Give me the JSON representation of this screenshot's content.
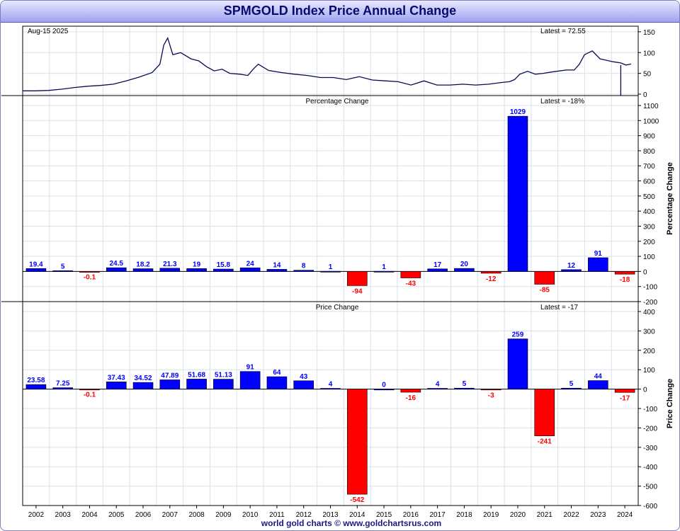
{
  "title": "SPMGOLD Index Price Annual Change",
  "footer": "world gold charts © www.goldchartsrus.com",
  "colors": {
    "positive": "#0000ff",
    "negative": "#ff0000",
    "line": "#0a0a50",
    "grid": "#d8e0ec"
  },
  "chart_data": [
    {
      "type": "line",
      "date_label": "Aug-15  2025",
      "latest_label": "Latest = 72.55",
      "ylim": [
        0,
        160
      ],
      "yticks": [
        0,
        50,
        100,
        150
      ],
      "xlim": [
        2001.5,
        2025
      ],
      "x": [
        2001.5,
        2002,
        2002.5,
        2003,
        2003.5,
        2004,
        2004.5,
        2005,
        2005.5,
        2006,
        2006.5,
        2006.8,
        2006.95,
        2007.1,
        2007.3,
        2007.6,
        2008,
        2008.3,
        2008.6,
        2008.9,
        2009.2,
        2009.5,
        2009.9,
        2010.2,
        2010.4,
        2010.6,
        2011,
        2011.5,
        2012,
        2012.5,
        2013,
        2013.5,
        2014,
        2014.5,
        2015,
        2015.5,
        2016,
        2016.5,
        2017,
        2017.5,
        2018,
        2018.5,
        2019,
        2019.5,
        2020,
        2020.3,
        2020.5,
        2020.7,
        2021,
        2021.3,
        2021.6,
        2022,
        2022.5,
        2022.8,
        2023,
        2023.2,
        2023.5,
        2023.8,
        2024,
        2024.3,
        2024.6,
        2024.8,
        2025
      ],
      "y": [
        8,
        8,
        9,
        12,
        16,
        19,
        21,
        24,
        32,
        41,
        52,
        72,
        118,
        135,
        95,
        100,
        85,
        80,
        66,
        56,
        60,
        50,
        48,
        45,
        60,
        72,
        57,
        52,
        48,
        45,
        40,
        40,
        35,
        42,
        34,
        32,
        30,
        22,
        32,
        22,
        22,
        24,
        22,
        24,
        28,
        30,
        35,
        48,
        55,
        48,
        50,
        54,
        58,
        58,
        72,
        95,
        104,
        85,
        82,
        78,
        75,
        70,
        72.55
      ]
    },
    {
      "type": "bar",
      "title": "Percentage Change",
      "latest_label": "Latest = -18%",
      "ylabel": "Percentage Change",
      "ylim": [
        -200,
        1100
      ],
      "yticks": [
        -200,
        -100,
        0,
        100,
        200,
        300,
        400,
        500,
        600,
        700,
        800,
        900,
        1000,
        1100
      ],
      "categories": [
        "2002",
        "2003",
        "2004",
        "2005",
        "2006",
        "2007",
        "2008",
        "2009",
        "2010",
        "2011",
        "2012",
        "2013",
        "2014",
        "2015",
        "2016",
        "2017",
        "2018",
        "2019",
        "2020",
        "2021",
        "2022",
        "2023",
        "2024"
      ],
      "values": [
        19.4,
        5,
        -0.1,
        24.5,
        18.2,
        21.3,
        19,
        15.8,
        24,
        14,
        8,
        1,
        -94,
        1,
        -43,
        17,
        20,
        -12,
        1029,
        -85,
        12,
        91,
        -18
      ],
      "labels": [
        "19.4",
        "5",
        "-0.1",
        "24.5",
        "18.2",
        "21.3",
        "19",
        "15.8",
        "24",
        "14",
        "8",
        "1",
        "-94",
        "1",
        "-43",
        "17",
        "20",
        "-12",
        "1029",
        "-85",
        "12",
        "91",
        "-18"
      ]
    },
    {
      "type": "bar",
      "title": "Price Change",
      "latest_label": "Latest = -17",
      "ylabel": "Price Change",
      "ylim": [
        -600,
        400
      ],
      "yticks": [
        -600,
        -500,
        -400,
        -300,
        -200,
        -100,
        0,
        100,
        200,
        300,
        400
      ],
      "categories": [
        "2002",
        "2003",
        "2004",
        "2005",
        "2006",
        "2007",
        "2008",
        "2009",
        "2010",
        "2011",
        "2012",
        "2013",
        "2014",
        "2015",
        "2016",
        "2017",
        "2018",
        "2019",
        "2020",
        "2021",
        "2022",
        "2023",
        "2024"
      ],
      "values": [
        23.58,
        7.25,
        -0.1,
        37.43,
        34.52,
        47.89,
        51.68,
        51.13,
        91,
        64,
        43,
        4,
        -542,
        0,
        -16,
        4,
        5,
        -3,
        259,
        -241,
        5,
        44,
        -17
      ],
      "labels": [
        "23.58",
        "7.25",
        "-0.1",
        "37.43",
        "34.52",
        "47.89",
        "51.68",
        "51.13",
        "91",
        "64",
        "43",
        "4",
        "-542",
        "0",
        "-16",
        "4",
        "5",
        "-3",
        "259",
        "-241",
        "5",
        "44",
        "-17"
      ]
    }
  ]
}
